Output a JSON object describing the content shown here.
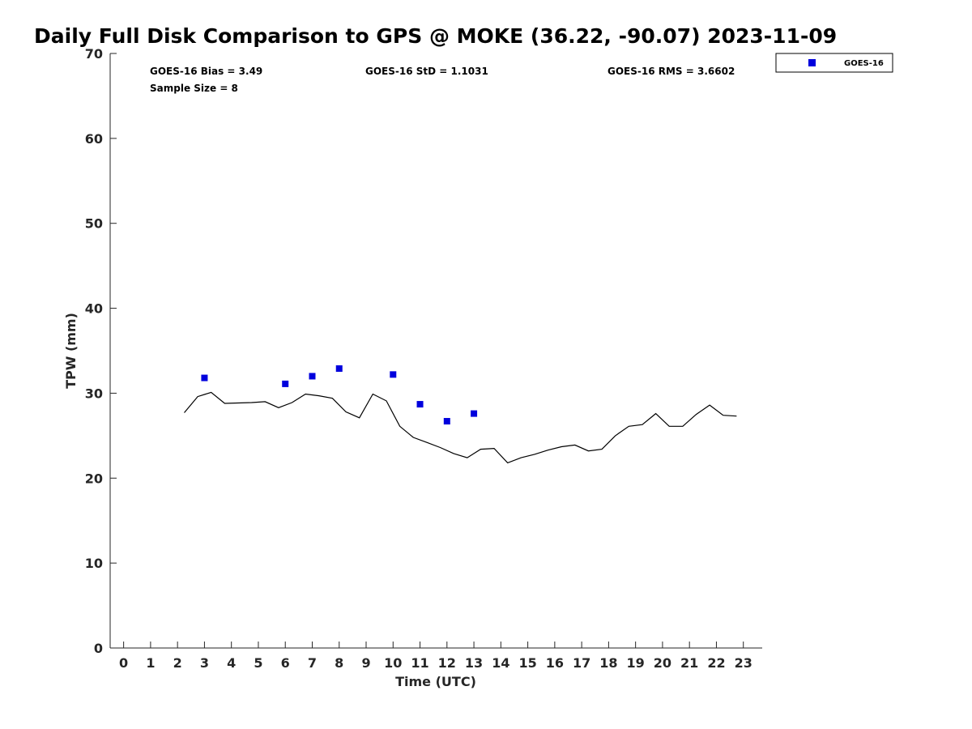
{
  "chart_data": {
    "type": "line",
    "title": "Daily Full Disk Comparison to GPS @ MOKE (36.22, -90.07) 2023-11-09",
    "xlabel": "Time (UTC)",
    "ylabel": "TPW (mm)",
    "xlim": [
      -0.5,
      23.7
    ],
    "ylim": [
      0,
      70
    ],
    "x_ticks": [
      "0",
      "1",
      "2",
      "3",
      "4",
      "5",
      "6",
      "7",
      "8",
      "9",
      "10",
      "11",
      "12",
      "13",
      "14",
      "15",
      "16",
      "17",
      "18",
      "19",
      "20",
      "21",
      "22",
      "23"
    ],
    "y_ticks": [
      "0",
      "10",
      "20",
      "30",
      "40",
      "50",
      "60",
      "70"
    ],
    "grid": false,
    "legend": {
      "placement": "top-right-outside",
      "entries": [
        "GOES-16"
      ]
    },
    "stats": {
      "bias": "GOES-16 Bias = 3.49",
      "std": "GOES-16 StD = 1.1031",
      "rms": "GOES-16 RMS = 3.6602",
      "sample": "Sample Size = 8"
    },
    "series": [
      {
        "style": "line",
        "color": "#000000",
        "x": [
          2.25,
          2.75,
          3.25,
          3.75,
          4.25,
          4.75,
          5.25,
          5.75,
          6.25,
          6.75,
          7.25,
          7.75,
          8.25,
          8.75,
          9.25,
          9.75,
          10.25,
          10.75,
          11.25,
          11.75,
          12.25,
          12.75,
          13.25,
          13.75,
          14.25,
          14.75,
          15.25,
          15.75,
          16.25,
          16.75,
          17.25,
          17.75,
          18.25,
          18.75,
          19.25,
          19.75,
          20.25,
          20.75,
          21.25,
          21.75,
          22.25,
          22.75
        ],
        "y": [
          27.7,
          29.6,
          30.1,
          28.8,
          28.85,
          28.9,
          29.0,
          28.3,
          28.9,
          29.9,
          29.7,
          29.4,
          27.8,
          27.1,
          29.9,
          29.1,
          26.1,
          24.8,
          24.2,
          23.6,
          22.9,
          22.4,
          23.4,
          23.5,
          21.8,
          22.4,
          22.8,
          23.3,
          23.7,
          23.9,
          23.2,
          23.4,
          25.0,
          26.1,
          26.3,
          27.6,
          26.1,
          26.1,
          27.5,
          28.6,
          27.4,
          27.3
        ]
      },
      {
        "name": "GOES-16",
        "style": "marker",
        "color": "#0000dd",
        "x": [
          3.0,
          6.0,
          7.0,
          8.0,
          10.0,
          11.0,
          12.0,
          13.0
        ],
        "y": [
          31.8,
          31.1,
          32.0,
          32.9,
          32.2,
          28.7,
          26.7,
          27.6
        ]
      }
    ]
  }
}
